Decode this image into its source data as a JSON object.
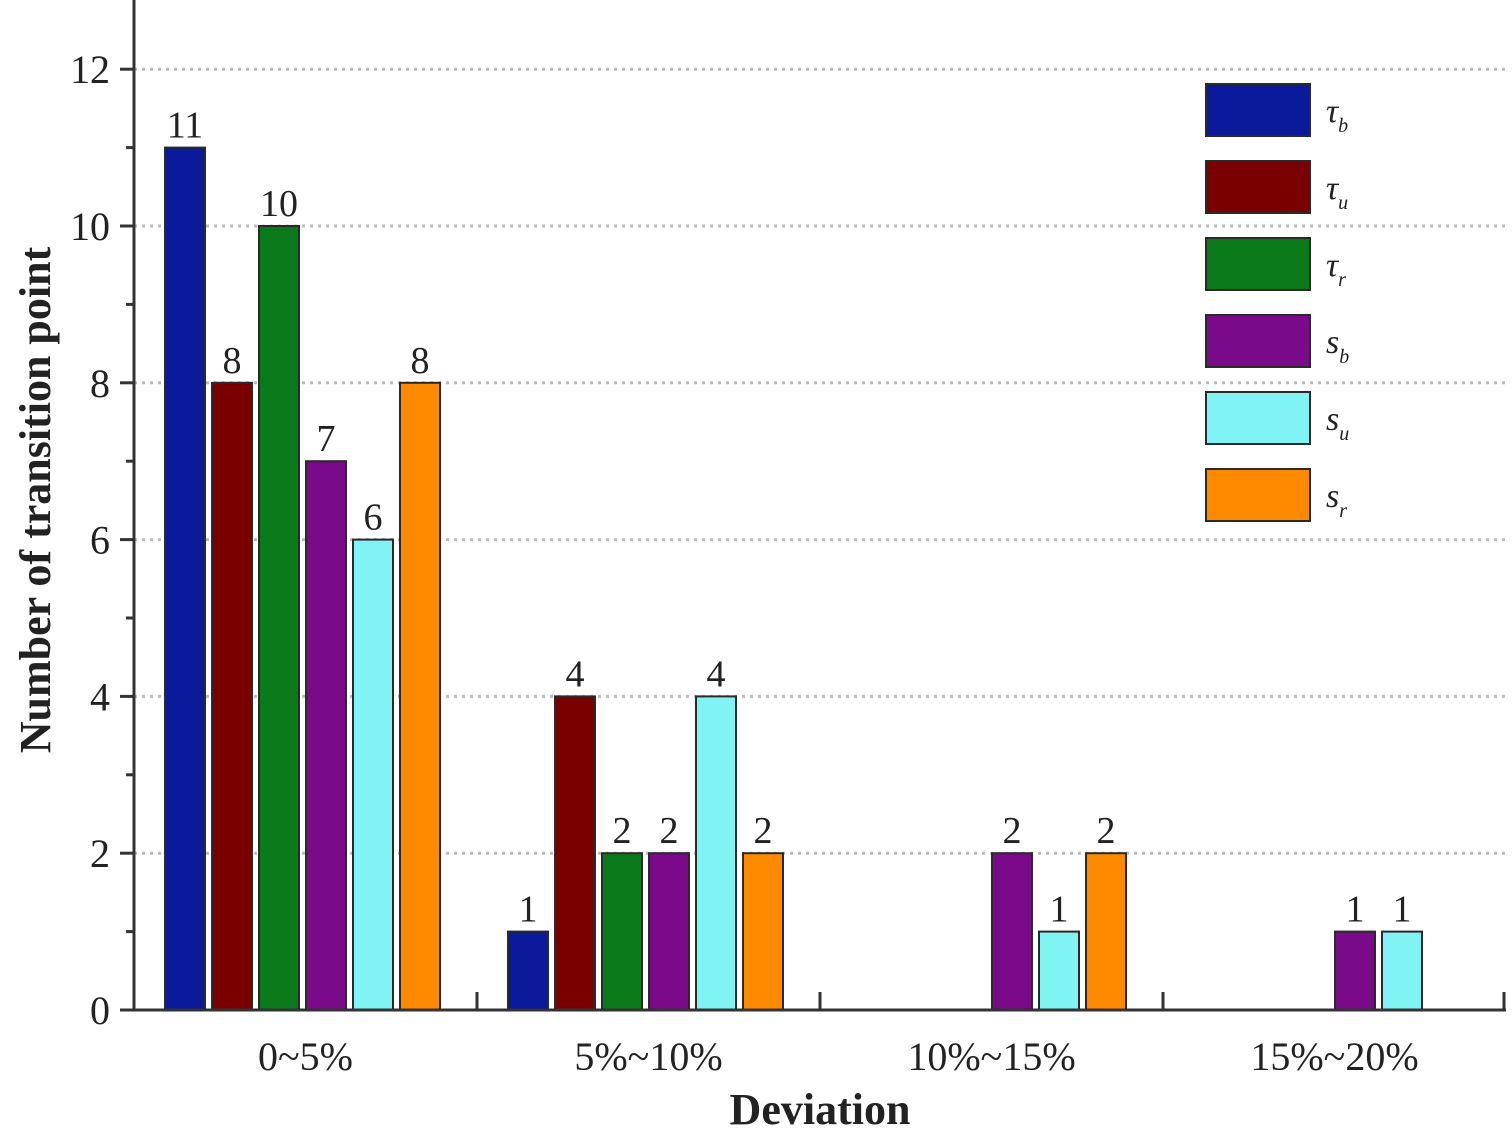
{
  "chart_data": {
    "type": "bar",
    "xlabel": "Deviation",
    "ylabel": "Number of transition point",
    "categories": [
      "0~5%",
      "5%~10%",
      "10%~15%",
      "15%~20%"
    ],
    "ylim": [
      0,
      13
    ],
    "yticks": [
      0,
      2,
      4,
      6,
      8,
      10,
      12
    ],
    "grid": "horizontal dotted",
    "legend_position": "top-right",
    "series": [
      {
        "name": "τb",
        "symbol": "τ",
        "subscript": "b",
        "color": "#0a1a9a",
        "values": [
          11,
          1,
          0,
          0
        ]
      },
      {
        "name": "τu",
        "symbol": "τ",
        "subscript": "u",
        "color": "#7a0000",
        "values": [
          8,
          4,
          0,
          0
        ]
      },
      {
        "name": "τr",
        "symbol": "τ",
        "subscript": "r",
        "color": "#0a7a1a",
        "values": [
          10,
          2,
          0,
          0
        ]
      },
      {
        "name": "sb",
        "symbol": "s",
        "subscript": "b",
        "color": "#7a0a8a",
        "values": [
          7,
          2,
          2,
          1
        ]
      },
      {
        "name": "su",
        "symbol": "s",
        "subscript": "u",
        "color": "#80f4f4",
        "values": [
          6,
          4,
          1,
          1
        ]
      },
      {
        "name": "sr",
        "symbol": "s",
        "subscript": "r",
        "color": "#ff8a00",
        "values": [
          8,
          2,
          2,
          0
        ]
      }
    ]
  }
}
